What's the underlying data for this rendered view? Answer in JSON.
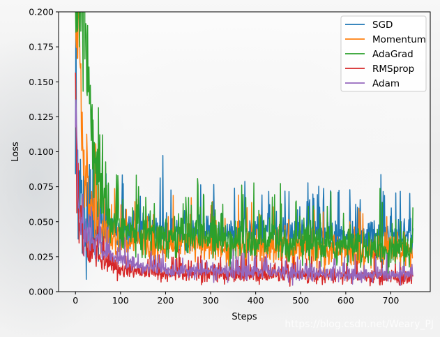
{
  "chart_data": {
    "type": "line",
    "title": "",
    "xlabel": "Steps",
    "ylabel": "Loss",
    "xlim": [
      -37.5,
      787.5
    ],
    "ylim": [
      0.0,
      0.2
    ],
    "xticks": [
      0,
      100,
      200,
      300,
      400,
      500,
      600,
      700
    ],
    "yticks": [
      0.0,
      0.025,
      0.05,
      0.075,
      0.1,
      0.125,
      0.15,
      0.175,
      0.2
    ],
    "ytick_labels": [
      "0.000",
      "0.025",
      "0.050",
      "0.075",
      "0.100",
      "0.125",
      "0.150",
      "0.175",
      "0.200"
    ],
    "grid": false,
    "legend_position": "top-right",
    "n_steps": 750,
    "series": [
      {
        "name": "SGD",
        "color": "#1f77b4",
        "x": [
          0,
          5,
          10,
          20,
          30,
          40,
          50,
          60,
          80,
          100,
          150,
          200,
          250,
          300,
          350,
          400,
          450,
          500,
          550,
          600,
          650,
          700,
          750
        ],
        "values": [
          0.11,
          0.09,
          0.07,
          0.06,
          0.055,
          0.052,
          0.05,
          0.048,
          0.046,
          0.045,
          0.044,
          0.044,
          0.043,
          0.043,
          0.042,
          0.042,
          0.041,
          0.041,
          0.04,
          0.04,
          0.04,
          0.039,
          0.039
        ]
      },
      {
        "name": "Momentum",
        "color": "#ff7f0e",
        "x": [
          0,
          3,
          5,
          8,
          12,
          20,
          30,
          40,
          50,
          60,
          80,
          100,
          150,
          200,
          300,
          400,
          500,
          600,
          700,
          750
        ],
        "values": [
          0.19,
          0.2,
          0.18,
          0.15,
          0.11,
          0.08,
          0.06,
          0.052,
          0.046,
          0.042,
          0.038,
          0.036,
          0.034,
          0.033,
          0.032,
          0.031,
          0.03,
          0.029,
          0.029,
          0.028
        ]
      },
      {
        "name": "AdaGrad",
        "color": "#2ca02c",
        "x": [
          0,
          10,
          20,
          30,
          40,
          50,
          60,
          70,
          80,
          100,
          150,
          200,
          300,
          400,
          500,
          600,
          700,
          750
        ],
        "values": [
          0.2,
          0.2,
          0.19,
          0.15,
          0.1,
          0.08,
          0.065,
          0.055,
          0.05,
          0.045,
          0.042,
          0.04,
          0.038,
          0.036,
          0.034,
          0.032,
          0.03,
          0.03
        ]
      },
      {
        "name": "RMSprop",
        "color": "#d62728",
        "x": [
          0,
          3,
          6,
          10,
          20,
          30,
          40,
          60,
          80,
          100,
          150,
          200,
          300,
          400,
          500,
          600,
          700,
          750
        ],
        "values": [
          0.16,
          0.08,
          0.05,
          0.04,
          0.035,
          0.03,
          0.026,
          0.022,
          0.019,
          0.016,
          0.014,
          0.013,
          0.012,
          0.012,
          0.011,
          0.011,
          0.01,
          0.01
        ]
      },
      {
        "name": "Adam",
        "color": "#9467bd",
        "x": [
          0,
          3,
          6,
          10,
          20,
          30,
          40,
          60,
          80,
          100,
          150,
          200,
          300,
          400,
          500,
          600,
          700,
          750
        ],
        "values": [
          0.12,
          0.1,
          0.07,
          0.055,
          0.045,
          0.04,
          0.036,
          0.03,
          0.026,
          0.022,
          0.018,
          0.016,
          0.015,
          0.014,
          0.013,
          0.013,
          0.012,
          0.012
        ]
      }
    ],
    "noise": {
      "SGD": 0.012,
      "Momentum": 0.011,
      "AdaGrad": 0.013,
      "RMSprop": 0.005,
      "Adam": 0.005
    }
  },
  "watermark": "https://blog.csdn.net/Weary_PJ"
}
